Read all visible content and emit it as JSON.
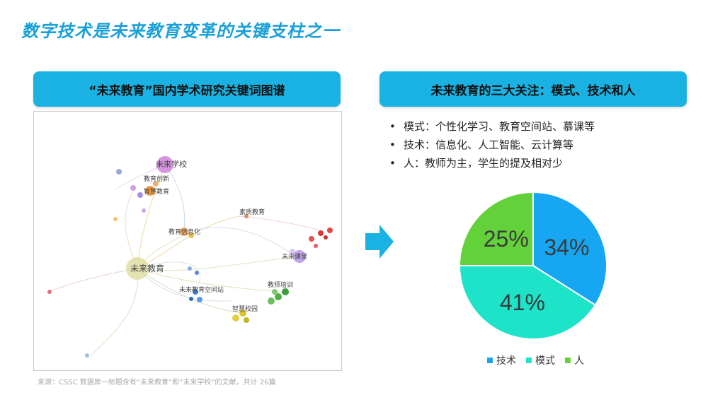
{
  "slide": {
    "title": "数字技术是未来教育变革的关键支柱之一"
  },
  "left_panel": {
    "banner": "“未来教育”国内学术研究关键词图谱",
    "source": "来源：CSSC 数据库一标题含有“未来教育”和“未来学校”的文献，共计 26篇",
    "graph_labels": {
      "hub_future_school": "未来学校",
      "hub_future_education": "未来教育",
      "node_edu_informatization": "教育信息化",
      "node_wisdom_edu": "智慧教育",
      "node_teacher_training": "教师培训",
      "node_future_classroom": "未来课堂",
      "node_smart_campus": "智慧校园",
      "node_future_space": "未来教育空间站",
      "node_quality": "素质教育",
      "node_innovation": "教育创新"
    }
  },
  "right_panel": {
    "banner": "未来教育的三大关注：模式、技术和人",
    "bullets": [
      "模式：个性化学习、教育空间站、慕课等",
      "技术：信息化、人工智能、云计算等",
      "人：教师为主，学生的提及相对少"
    ],
    "bullet_symbol": "•"
  },
  "chart_data": {
    "type": "pie",
    "categories": [
      "技术",
      "模式",
      "人"
    ],
    "values": [
      34,
      41,
      25
    ],
    "labels": [
      "34%",
      "41%",
      "25%"
    ],
    "colors": [
      "#16a6f2",
      "#1de3c8",
      "#63d23a"
    ],
    "legend_position": "bottom"
  }
}
